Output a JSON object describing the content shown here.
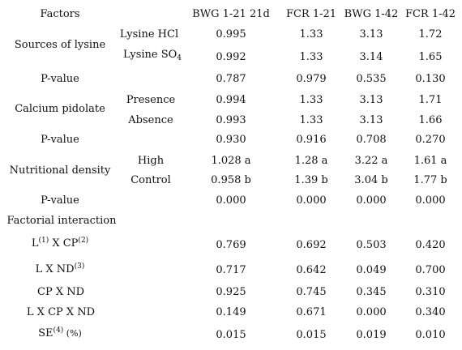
{
  "headers": {
    "factors": "Factors",
    "bwg_1_21": "BWG 1-21 21d",
    "fcr_1_21": "FCR 1-21",
    "bwg_1_42": "BWG 1-42",
    "fcr_1_42": "FCR 1-42"
  },
  "sources_of_lysine": {
    "label": "Sources of lysine",
    "lysine_hcl": {
      "label": "Lysine HCl",
      "values": [
        "0.995",
        "1.33",
        "3.13",
        "1.72"
      ]
    },
    "lysine_so4": {
      "label_main": "Lysine SO",
      "label_sub": "4",
      "values": [
        "0.992",
        "1.33",
        "3.14",
        "1.65"
      ]
    },
    "p_value": {
      "label": "P-value",
      "values": [
        "0.787",
        "0.979",
        "0.535",
        "0.130"
      ]
    }
  },
  "calcium_pidolate": {
    "label": "Calcium pidolate",
    "presence": {
      "label": "Presence",
      "values": [
        "0.994",
        "1.33",
        "3.13",
        "1.71"
      ]
    },
    "absence": {
      "label": "Absence",
      "values": [
        "0.993",
        "1.33",
        "3.13",
        "1.66"
      ]
    },
    "p_value": {
      "label": "P-value",
      "values": [
        "0.930",
        "0.916",
        "0.708",
        "0.270"
      ]
    }
  },
  "nutritional_density": {
    "label": "Nutritional density",
    "high": {
      "label": "High",
      "values": [
        "1.028 a",
        "1.28 a",
        "3.22 a",
        "1.61 a"
      ]
    },
    "control": {
      "label": "Control",
      "values": [
        "0.958 b",
        "1.39 b",
        "3.04 b",
        "1.77 b"
      ]
    },
    "p_value": {
      "label": "P-value",
      "values": [
        "0.000",
        "0.000",
        "0.000",
        "0.000"
      ]
    }
  },
  "factorial_interaction": {
    "label": "Factorial interaction",
    "l_x_cp": {
      "l": "L",
      "l_sup": "(1)",
      "mid": " X CP",
      "cp_sup": "(2)",
      "values": [
        "0.769",
        "0.692",
        "0.503",
        "0.420"
      ]
    },
    "l_x_nd": {
      "main": "L X ND",
      "sup": "(3)",
      "values": [
        "0.717",
        "0.642",
        "0.049",
        "0.700"
      ]
    },
    "cp_x_nd": {
      "label": "CP X ND",
      "values": [
        "0.925",
        "0.745",
        "0.345",
        "0.310"
      ]
    },
    "l_x_cp_x_nd": {
      "label": "L X CP X ND",
      "values": [
        "0.149",
        "0.671",
        "0.000",
        "0.340"
      ]
    }
  },
  "se": {
    "main": "SE",
    "sup": "(4)",
    "unit": " (%)",
    "values": [
      "0.015",
      "0.015",
      "0.019",
      "0.010"
    ]
  }
}
